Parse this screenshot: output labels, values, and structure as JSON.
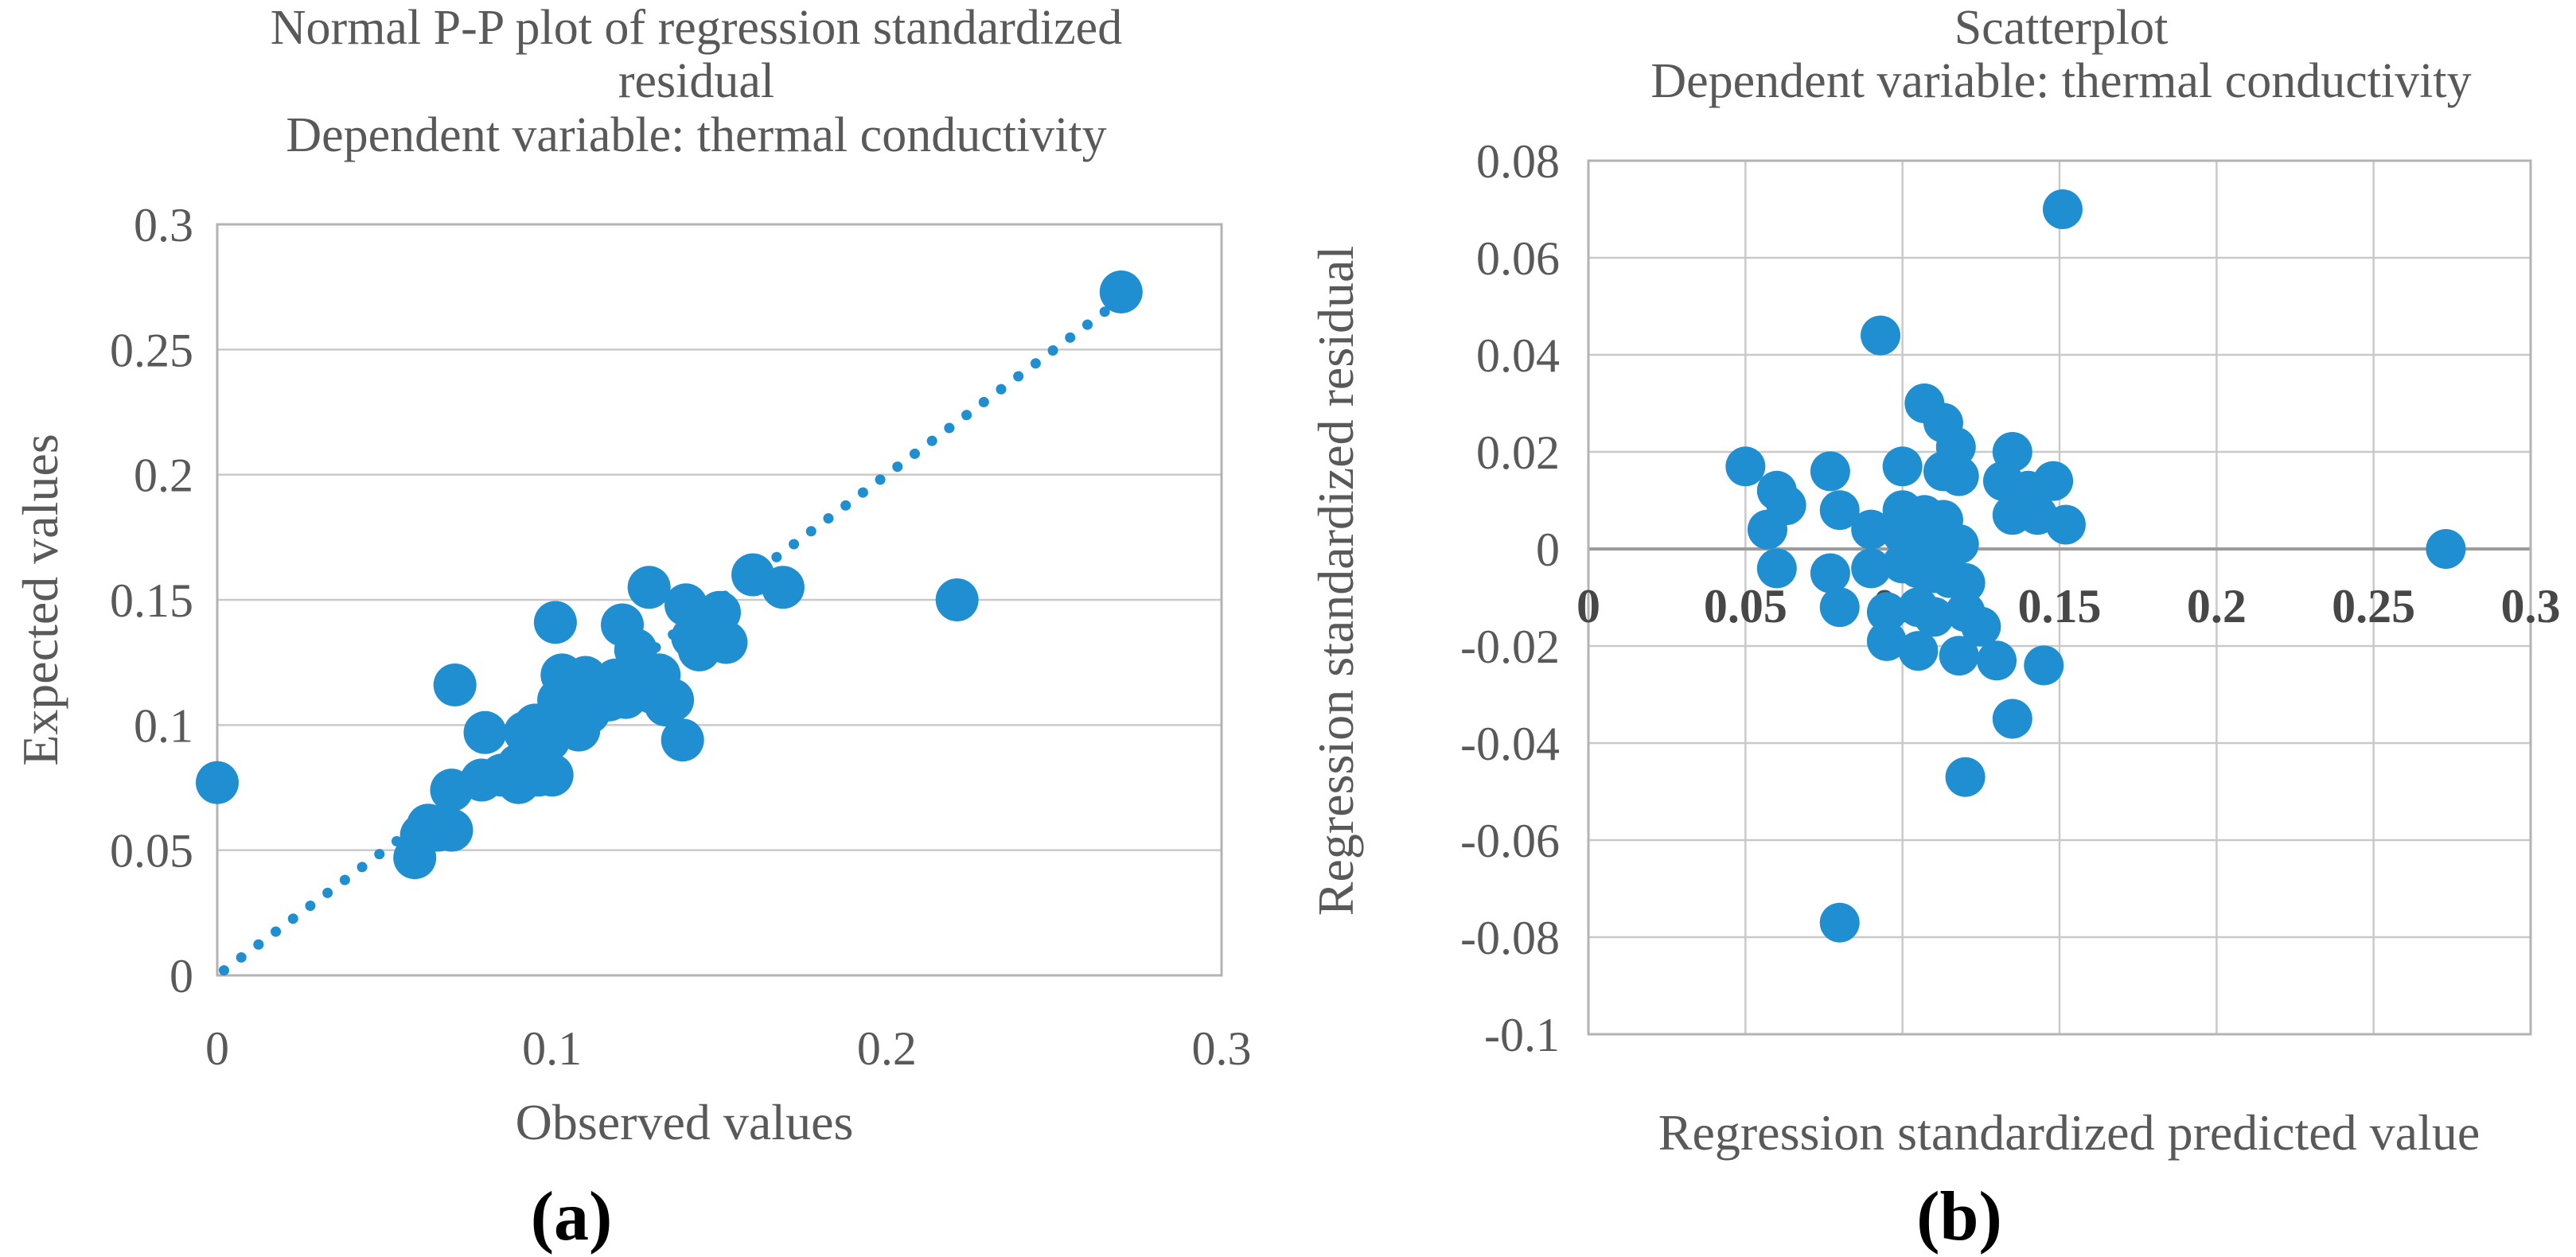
{
  "figure": {
    "background": "#ffffff"
  },
  "colors": {
    "point": "#1f8fd1",
    "grid": "#c9c9c9",
    "border": "#b3b3b3",
    "zero_line": "#9c9c9c",
    "tick_text": "#595959",
    "tick_text_bold": "#474747",
    "caption_text": "#000000"
  },
  "chart_data": [
    {
      "type": "scatter",
      "panel": "a",
      "caption": "(a)",
      "title_lines": [
        "Normal P-P plot of regression standardized",
        "residual",
        "Dependent variable: thermal conductivity"
      ],
      "xlabel": "Observed values",
      "ylabel": "Expected values",
      "xlim": [
        0,
        0.3
      ],
      "ylim": [
        0,
        0.3
      ],
      "xticks": [
        0,
        0.1,
        0.2,
        0.3
      ],
      "xtick_labels": [
        "0",
        "0.1",
        "0.2",
        "0.3"
      ],
      "yticks": [
        0,
        0.05,
        0.1,
        0.15,
        0.2,
        0.25,
        0.3
      ],
      "ytick_labels": [
        "0",
        "0.05",
        "0.1",
        "0.15",
        "0.2",
        "0.25",
        "0.3"
      ],
      "grid": "horizontal",
      "legend": "none",
      "bold_xticks": false,
      "emphasize_zero": false,
      "reference_line": {
        "style": "dotted",
        "from": [
          0.002,
          0.002
        ],
        "to": [
          0.268,
          0.268
        ]
      },
      "points": [
        [
          0,
          0.077
        ],
        [
          0.059,
          0.047
        ],
        [
          0.061,
          0.056
        ],
        [
          0.063,
          0.06
        ],
        [
          0.066,
          0.058
        ],
        [
          0.07,
          0.058
        ],
        [
          0.07,
          0.074
        ],
        [
          0.071,
          0.116
        ],
        [
          0.079,
          0.078
        ],
        [
          0.08,
          0.097
        ],
        [
          0.085,
          0.08
        ],
        [
          0.09,
          0.077
        ],
        [
          0.09,
          0.084
        ],
        [
          0.092,
          0.097
        ],
        [
          0.095,
          0.1
        ],
        [
          0.096,
          0.08
        ],
        [
          0.099,
          0.094
        ],
        [
          0.1,
          0.08
        ],
        [
          0.101,
          0.141
        ],
        [
          0.102,
          0.11
        ],
        [
          0.103,
          0.12
        ],
        [
          0.105,
          0.103
        ],
        [
          0.105,
          0.111
        ],
        [
          0.107,
          0.108
        ],
        [
          0.108,
          0.098
        ],
        [
          0.11,
          0.119
        ],
        [
          0.111,
          0.105
        ],
        [
          0.112,
          0.108
        ],
        [
          0.113,
          0.115
        ],
        [
          0.115,
          0.114
        ],
        [
          0.117,
          0.11
        ],
        [
          0.119,
          0.118
        ],
        [
          0.12,
          0.112
        ],
        [
          0.121,
          0.14
        ],
        [
          0.122,
          0.111
        ],
        [
          0.125,
          0.13
        ],
        [
          0.127,
          0.12
        ],
        [
          0.129,
          0.155
        ],
        [
          0.13,
          0.113
        ],
        [
          0.132,
          0.12
        ],
        [
          0.134,
          0.108
        ],
        [
          0.136,
          0.11
        ],
        [
          0.139,
          0.094
        ],
        [
          0.14,
          0.148
        ],
        [
          0.142,
          0.135
        ],
        [
          0.144,
          0.13
        ],
        [
          0.146,
          0.136
        ],
        [
          0.15,
          0.145
        ],
        [
          0.152,
          0.133
        ],
        [
          0.16,
          0.16
        ],
        [
          0.169,
          0.155
        ],
        [
          0.221,
          0.15
        ],
        [
          0.27,
          0.273
        ]
      ]
    },
    {
      "type": "scatter",
      "panel": "b",
      "caption": "(b)",
      "title_lines": [
        "Scatterplot",
        "Dependent variable: thermal conductivity"
      ],
      "xlabel": "Regression standardized predicted value",
      "ylabel": "Regression standardized residual",
      "xlim": [
        0,
        0.3
      ],
      "ylim": [
        -0.1,
        0.08
      ],
      "xticks": [
        0,
        0.05,
        0.1,
        0.15,
        0.2,
        0.25,
        0.3
      ],
      "xtick_labels": [
        "0",
        "0.05",
        "0.1",
        "0.15",
        "0.2",
        "0.25",
        "0.3"
      ],
      "yticks": [
        0.08,
        0.06,
        0.04,
        0.02,
        0,
        -0.02,
        -0.04,
        -0.06,
        -0.08,
        -0.1
      ],
      "ytick_labels": [
        "0.08",
        "0.06",
        "0.04",
        "0.02",
        "0",
        "-0.02",
        "-0.04",
        "-0.06",
        "-0.08",
        "-0.1"
      ],
      "grid": "both",
      "legend": "none",
      "bold_xticks": true,
      "emphasize_zero": true,
      "reference_line": null,
      "points": [
        [
          0.151,
          0.07
        ],
        [
          0.093,
          0.044
        ],
        [
          0.107,
          0.03
        ],
        [
          0.113,
          0.026
        ],
        [
          0.117,
          0.021
        ],
        [
          0.135,
          0.02
        ],
        [
          0.05,
          0.017
        ],
        [
          0.077,
          0.016
        ],
        [
          0.1,
          0.017
        ],
        [
          0.113,
          0.016
        ],
        [
          0.118,
          0.015
        ],
        [
          0.132,
          0.014
        ],
        [
          0.148,
          0.014
        ],
        [
          0.14,
          0.012
        ],
        [
          0.06,
          0.012
        ],
        [
          0.063,
          0.009
        ],
        [
          0.08,
          0.008
        ],
        [
          0.1,
          0.008
        ],
        [
          0.107,
          0.007
        ],
        [
          0.113,
          0.006
        ],
        [
          0.135,
          0.007
        ],
        [
          0.143,
          0.007
        ],
        [
          0.152,
          0.005
        ],
        [
          0.057,
          0.004
        ],
        [
          0.09,
          0.004
        ],
        [
          0.1,
          0.003
        ],
        [
          0.107,
          0.002
        ],
        [
          0.112,
          0.001
        ],
        [
          0.118,
          0.001
        ],
        [
          0.273,
          0
        ],
        [
          0.06,
          -0.004
        ],
        [
          0.077,
          -0.005
        ],
        [
          0.09,
          -0.004
        ],
        [
          0.1,
          -0.003
        ],
        [
          0.105,
          -0.004
        ],
        [
          0.11,
          -0.005
        ],
        [
          0.115,
          -0.006
        ],
        [
          0.12,
          -0.007
        ],
        [
          0.08,
          -0.012
        ],
        [
          0.095,
          -0.013
        ],
        [
          0.105,
          -0.012
        ],
        [
          0.11,
          -0.014
        ],
        [
          0.12,
          -0.013
        ],
        [
          0.125,
          -0.016
        ],
        [
          0.095,
          -0.019
        ],
        [
          0.105,
          -0.021
        ],
        [
          0.118,
          -0.022
        ],
        [
          0.13,
          -0.023
        ],
        [
          0.145,
          -0.024
        ],
        [
          0.135,
          -0.035
        ],
        [
          0.12,
          -0.047
        ],
        [
          0.08,
          -0.077
        ]
      ]
    }
  ]
}
